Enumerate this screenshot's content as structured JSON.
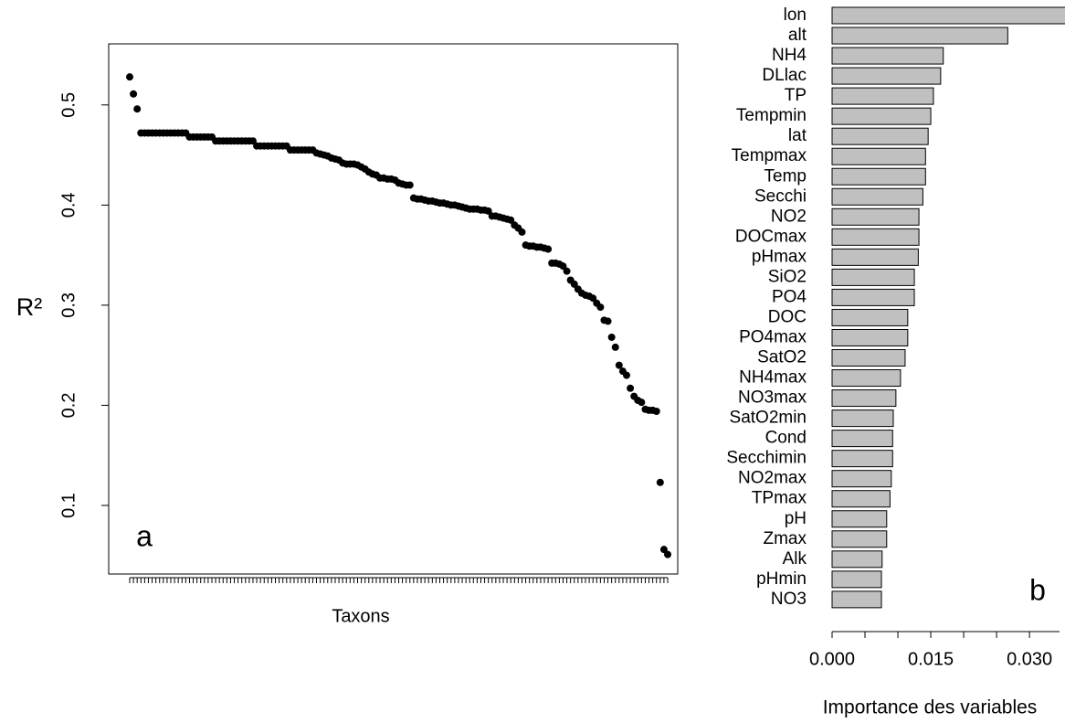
{
  "chart_data": [
    {
      "type": "scatter",
      "y_label": "R²",
      "x_label": "Taxons",
      "annotation": "a",
      "color": "#000000",
      "ylim": [
        0.0315,
        0.561
      ],
      "yticks": [
        0.1,
        0.2,
        0.3,
        0.4,
        0.5
      ],
      "categories": [
        null,
        null,
        null,
        null,
        null,
        null,
        null,
        null,
        null,
        null,
        null,
        null,
        null,
        null,
        null,
        null,
        null,
        null,
        null,
        null,
        null,
        null,
        null,
        null,
        null,
        null,
        null,
        null,
        null,
        null,
        null,
        null,
        null,
        null,
        null,
        null,
        null,
        null,
        null,
        null,
        null,
        null,
        null,
        null,
        null,
        null,
        null,
        null,
        null,
        null,
        null,
        null,
        null,
        null,
        null,
        null,
        null,
        null,
        null,
        null,
        null,
        null,
        null,
        null,
        null,
        null,
        null,
        null,
        null,
        null,
        null,
        null,
        null,
        null,
        null,
        null,
        null,
        null,
        null,
        null,
        null,
        null,
        null,
        null,
        null,
        null,
        null,
        null,
        null,
        null,
        null,
        null,
        null,
        null,
        null,
        null,
        null,
        null,
        null,
        null,
        null,
        null,
        null,
        null,
        null,
        null,
        null,
        null,
        null,
        null,
        null,
        null,
        null,
        null,
        null,
        null,
        null,
        null,
        null,
        null,
        null,
        null,
        null,
        null,
        null,
        null,
        null,
        null,
        null,
        null,
        null,
        null,
        null,
        null,
        null,
        null,
        null,
        null,
        null,
        null,
        null,
        null,
        null,
        null,
        null
      ],
      "values": [
        0.528,
        0.511,
        0.496,
        0.472,
        0.472,
        0.472,
        0.472,
        0.472,
        0.472,
        0.472,
        0.472,
        0.472,
        0.472,
        0.472,
        0.472,
        0.472,
        0.468,
        0.468,
        0.468,
        0.468,
        0.468,
        0.468,
        0.468,
        0.464,
        0.464,
        0.464,
        0.464,
        0.464,
        0.464,
        0.464,
        0.464,
        0.464,
        0.464,
        0.464,
        0.459,
        0.459,
        0.459,
        0.459,
        0.459,
        0.459,
        0.459,
        0.459,
        0.459,
        0.455,
        0.455,
        0.455,
        0.455,
        0.455,
        0.455,
        0.455,
        0.452,
        0.451,
        0.45,
        0.449,
        0.447,
        0.446,
        0.445,
        0.442,
        0.441,
        0.441,
        0.441,
        0.44,
        0.438,
        0.436,
        0.433,
        0.431,
        0.43,
        0.427,
        0.427,
        0.426,
        0.426,
        0.425,
        0.422,
        0.421,
        0.42,
        0.42,
        0.407,
        0.406,
        0.406,
        0.405,
        0.404,
        0.404,
        0.403,
        0.402,
        0.402,
        0.401,
        0.4,
        0.4,
        0.399,
        0.398,
        0.397,
        0.396,
        0.396,
        0.396,
        0.395,
        0.395,
        0.394,
        0.389,
        0.389,
        0.388,
        0.387,
        0.386,
        0.385,
        0.38,
        0.377,
        0.373,
        0.36,
        0.359,
        0.359,
        0.358,
        0.358,
        0.357,
        0.356,
        0.342,
        0.342,
        0.341,
        0.339,
        0.334,
        0.325,
        0.321,
        0.316,
        0.312,
        0.31,
        0.309,
        0.307,
        0.302,
        0.298,
        0.285,
        0.284,
        0.268,
        0.258,
        0.24,
        0.234,
        0.23,
        0.217,
        0.209,
        0.205,
        0.203,
        0.196,
        0.195,
        0.195,
        0.194,
        0.123,
        0.056,
        0.051
      ]
    },
    {
      "type": "bar",
      "horizontal": true,
      "x_label": "Importance des variables",
      "annotation": "b",
      "color": "#c0c0c0",
      "categories": [
        "lon",
        "alt",
        "NH4",
        "DLlac",
        "TP",
        "Tempmin",
        "lat",
        "Tempmax",
        "Temp",
        "Secchi",
        "NO2",
        "DOCmax",
        "pHmax",
        "SiO2",
        "PO4",
        "DOC",
        "PO4max",
        "SatO2",
        "NH4max",
        "NO3max",
        "SatO2min",
        "Cond",
        "Secchimin",
        "NO2max",
        "TPmax",
        "pH",
        "Zmax",
        "Alk",
        "pHmin",
        "NO3"
      ],
      "values": [
        0.0355,
        0.0267,
        0.0169,
        0.0165,
        0.0154,
        0.015,
        0.0146,
        0.0142,
        0.0142,
        0.0138,
        0.0132,
        0.0132,
        0.0131,
        0.0125,
        0.0125,
        0.0115,
        0.0115,
        0.0111,
        0.0104,
        0.0097,
        0.0093,
        0.0092,
        0.0092,
        0.009,
        0.0088,
        0.0083,
        0.0083,
        0.0076,
        0.0075,
        0.0075
      ],
      "xlim": [
        0,
        0.0354
      ],
      "xticks": [
        {
          "value": 0,
          "label": "0.000"
        },
        {
          "value": 0.015,
          "label": "0.015"
        },
        {
          "value": 0.03,
          "label": "0.030"
        }
      ],
      "minor_xticks": [
        0.005,
        0.01,
        0.02,
        0.025
      ]
    }
  ]
}
